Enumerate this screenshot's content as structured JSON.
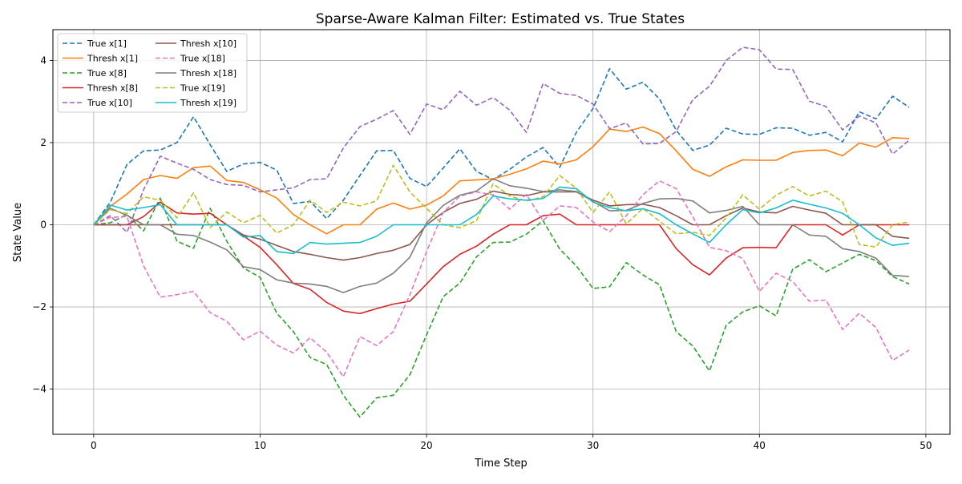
{
  "chart_data": {
    "type": "line",
    "title": "Sparse-Aware Kalman Filter: Estimated vs. True States",
    "xlabel": "Time Step",
    "ylabel": "State Value",
    "xlim": [
      -2.45,
      51.45
    ],
    "ylim": [
      -5.1,
      4.75
    ],
    "xticks": [
      0,
      10,
      20,
      30,
      40,
      50
    ],
    "yticks": [
      -4,
      -2,
      0,
      2,
      4
    ],
    "grid": true,
    "legend": {
      "placement": "top-left",
      "columns": 2
    },
    "x": [
      0,
      1,
      2,
      3,
      4,
      5,
      6,
      7,
      8,
      9,
      10,
      11,
      12,
      13,
      14,
      15,
      16,
      17,
      18,
      19,
      20,
      21,
      22,
      23,
      24,
      25,
      26,
      27,
      28,
      29,
      30,
      31,
      32,
      33,
      34,
      35,
      36,
      37,
      38,
      39,
      40,
      41,
      42,
      43,
      44,
      45,
      46,
      47,
      48,
      49
    ],
    "series": [
      {
        "name": "True x[1]",
        "color": "#1f77b4",
        "dashed": true,
        "values": [
          0,
          0.55,
          1.47,
          1.8,
          1.82,
          2.0,
          2.63,
          1.95,
          1.3,
          1.48,
          1.52,
          1.33,
          0.52,
          0.57,
          0.15,
          0.6,
          1.2,
          1.8,
          1.81,
          1.13,
          0.93,
          1.38,
          1.85,
          1.3,
          1.1,
          1.35,
          1.65,
          1.88,
          1.4,
          2.25,
          2.83,
          3.8,
          3.3,
          3.47,
          3.06,
          2.3,
          1.81,
          1.94,
          2.35,
          2.21,
          2.2,
          2.36,
          2.35,
          2.18,
          2.25,
          2.02,
          2.75,
          2.58,
          3.13,
          2.86
        ]
      },
      {
        "name": "Thresh x[1]",
        "color": "#ff7f0e",
        "dashed": false,
        "values": [
          0,
          0.45,
          0.75,
          1.1,
          1.2,
          1.13,
          1.39,
          1.43,
          1.08,
          1.03,
          0.85,
          0.65,
          0.25,
          0.0,
          -0.22,
          0.0,
          0.0,
          0.38,
          0.53,
          0.38,
          0.48,
          0.7,
          1.07,
          1.09,
          1.12,
          1.23,
          1.36,
          1.55,
          1.48,
          1.58,
          1.9,
          2.33,
          2.27,
          2.38,
          2.22,
          1.8,
          1.35,
          1.18,
          1.41,
          1.58,
          1.57,
          1.57,
          1.76,
          1.81,
          1.82,
          1.68,
          1.99,
          1.89,
          2.12,
          2.1
        ]
      },
      {
        "name": "True x[8]",
        "color": "#2ca02c",
        "dashed": true,
        "values": [
          0,
          0.05,
          0.25,
          -0.15,
          0.65,
          -0.4,
          -0.57,
          0.4,
          -0.4,
          -1.05,
          -1.28,
          -2.15,
          -2.6,
          -3.23,
          -3.4,
          -4.15,
          -4.68,
          -4.21,
          -4.15,
          -3.65,
          -2.68,
          -1.75,
          -1.42,
          -0.78,
          -0.43,
          -0.42,
          -0.23,
          0.1,
          -0.59,
          -1.0,
          -1.55,
          -1.51,
          -0.92,
          -1.22,
          -1.46,
          -2.6,
          -2.95,
          -3.56,
          -2.45,
          -2.12,
          -1.97,
          -2.22,
          -1.08,
          -0.85,
          -1.14,
          -0.93,
          -0.72,
          -0.87,
          -1.26,
          -1.44
        ]
      },
      {
        "name": "Thresh x[8]",
        "color": "#d62728",
        "dashed": false,
        "values": [
          0,
          0,
          0,
          0.2,
          0.55,
          0.29,
          0.26,
          0.28,
          0.0,
          -0.27,
          -0.55,
          -0.97,
          -1.43,
          -1.57,
          -1.89,
          -2.1,
          -2.16,
          -2.04,
          -1.93,
          -1.86,
          -1.44,
          -1.02,
          -0.72,
          -0.52,
          -0.23,
          0.0,
          0.0,
          0.22,
          0.26,
          0.0,
          0.0,
          0.0,
          0.0,
          0.0,
          0.0,
          -0.58,
          -0.97,
          -1.22,
          -0.81,
          -0.56,
          -0.55,
          -0.56,
          0.0,
          0.0,
          0.0,
          -0.25,
          0.0,
          0.0,
          0.0,
          0.0
        ]
      },
      {
        "name": "True x[10]",
        "color": "#9467bd",
        "dashed": true,
        "values": [
          0,
          0.22,
          -0.18,
          0.85,
          1.67,
          1.5,
          1.35,
          1.1,
          0.98,
          0.96,
          0.8,
          0.85,
          0.9,
          1.1,
          1.12,
          1.87,
          2.39,
          2.57,
          2.78,
          2.2,
          2.94,
          2.8,
          3.25,
          2.91,
          3.1,
          2.79,
          2.25,
          3.44,
          3.2,
          3.15,
          2.94,
          2.34,
          2.48,
          1.97,
          1.98,
          2.27,
          3.05,
          3.37,
          4.0,
          4.32,
          4.26,
          3.79,
          3.78,
          3.01,
          2.88,
          2.31,
          2.65,
          2.48,
          1.72,
          2.06
        ]
      },
      {
        "name": "Thresh x[10]",
        "color": "#8c564b",
        "dashed": false,
        "values": [
          0,
          0,
          0,
          0.0,
          0.0,
          0,
          0,
          0,
          0,
          -0.25,
          -0.35,
          -0.5,
          -0.65,
          -0.72,
          -0.8,
          -0.86,
          -0.8,
          -0.7,
          -0.62,
          -0.48,
          0.0,
          0.3,
          0.52,
          0.62,
          0.82,
          0.74,
          0.71,
          0.8,
          0.8,
          0.8,
          0.6,
          0.46,
          0.49,
          0.5,
          0.42,
          0.22,
          0.0,
          0.0,
          0.22,
          0.41,
          0.31,
          0.29,
          0.45,
          0.36,
          0.28,
          0.0,
          0.0,
          0.0,
          -0.28,
          -0.33
        ]
      },
      {
        "name": "True x[18]",
        "color": "#e377c2",
        "dashed": true,
        "values": [
          0,
          0.18,
          0.2,
          -1.0,
          -1.76,
          -1.7,
          -1.62,
          -2.14,
          -2.35,
          -2.8,
          -2.59,
          -2.93,
          -3.12,
          -2.75,
          -3.1,
          -3.7,
          -2.72,
          -2.94,
          -2.6,
          -1.7,
          -0.65,
          0.3,
          0.7,
          0.8,
          0.73,
          0.38,
          0.74,
          0.1,
          0.46,
          0.42,
          0.07,
          -0.17,
          0.22,
          0.73,
          1.07,
          0.88,
          0.2,
          -0.55,
          -0.63,
          -0.82,
          -1.62,
          -1.18,
          -1.38,
          -1.86,
          -1.83,
          -2.55,
          -2.15,
          -2.5,
          -3.3,
          -3.05
        ]
      },
      {
        "name": "Thresh x[18]",
        "color": "#7f7f7f",
        "dashed": false,
        "values": [
          0,
          0.4,
          0.23,
          0.0,
          0.0,
          -0.23,
          -0.26,
          -0.42,
          -0.61,
          -1.02,
          -1.09,
          -1.34,
          -1.42,
          -1.44,
          -1.5,
          -1.65,
          -1.5,
          -1.42,
          -1.18,
          -0.79,
          0.05,
          0.47,
          0.72,
          0.82,
          1.12,
          0.95,
          0.89,
          0.81,
          0.85,
          0.81,
          0.57,
          0.34,
          0.35,
          0.52,
          0.63,
          0.64,
          0.58,
          0.29,
          0.35,
          0.45,
          0.0,
          0.0,
          0.0,
          -0.25,
          -0.28,
          -0.58,
          -0.65,
          -0.81,
          -1.23,
          -1.26
        ]
      },
      {
        "name": "True x[19]",
        "color": "#bcbd22",
        "dashed": true,
        "values": [
          0,
          0.37,
          0.27,
          0.68,
          0.6,
          0.17,
          0.78,
          -0.07,
          0.31,
          0.05,
          0.23,
          -0.2,
          0.0,
          0.6,
          0.3,
          0.55,
          0.46,
          0.58,
          1.45,
          0.8,
          0.4,
          0.0,
          -0.07,
          0.1,
          1.0,
          0.7,
          0.58,
          0.68,
          1.2,
          0.89,
          0.3,
          0.8,
          0.02,
          0.4,
          0.09,
          -0.22,
          -0.18,
          -0.26,
          0.17,
          0.73,
          0.38,
          0.72,
          0.93,
          0.7,
          0.82,
          0.56,
          -0.48,
          -0.54,
          0.0,
          0.07
        ]
      },
      {
        "name": "Thresh x[19]",
        "color": "#17becf",
        "dashed": false,
        "values": [
          0,
          0.48,
          0.36,
          0.42,
          0.49,
          0.0,
          0.0,
          0.0,
          0.0,
          -0.3,
          -0.26,
          -0.65,
          -0.7,
          -0.43,
          -0.47,
          -0.45,
          -0.43,
          -0.28,
          0.0,
          0.0,
          0.0,
          0.0,
          0.0,
          0.25,
          0.7,
          0.63,
          0.6,
          0.64,
          0.92,
          0.88,
          0.55,
          0.42,
          0.34,
          0.39,
          0.27,
          0.0,
          -0.22,
          -0.43,
          0.0,
          0.37,
          0.29,
          0.41,
          0.6,
          0.5,
          0.41,
          0.28,
          0.0,
          -0.32,
          -0.5,
          -0.45
        ]
      }
    ]
  }
}
